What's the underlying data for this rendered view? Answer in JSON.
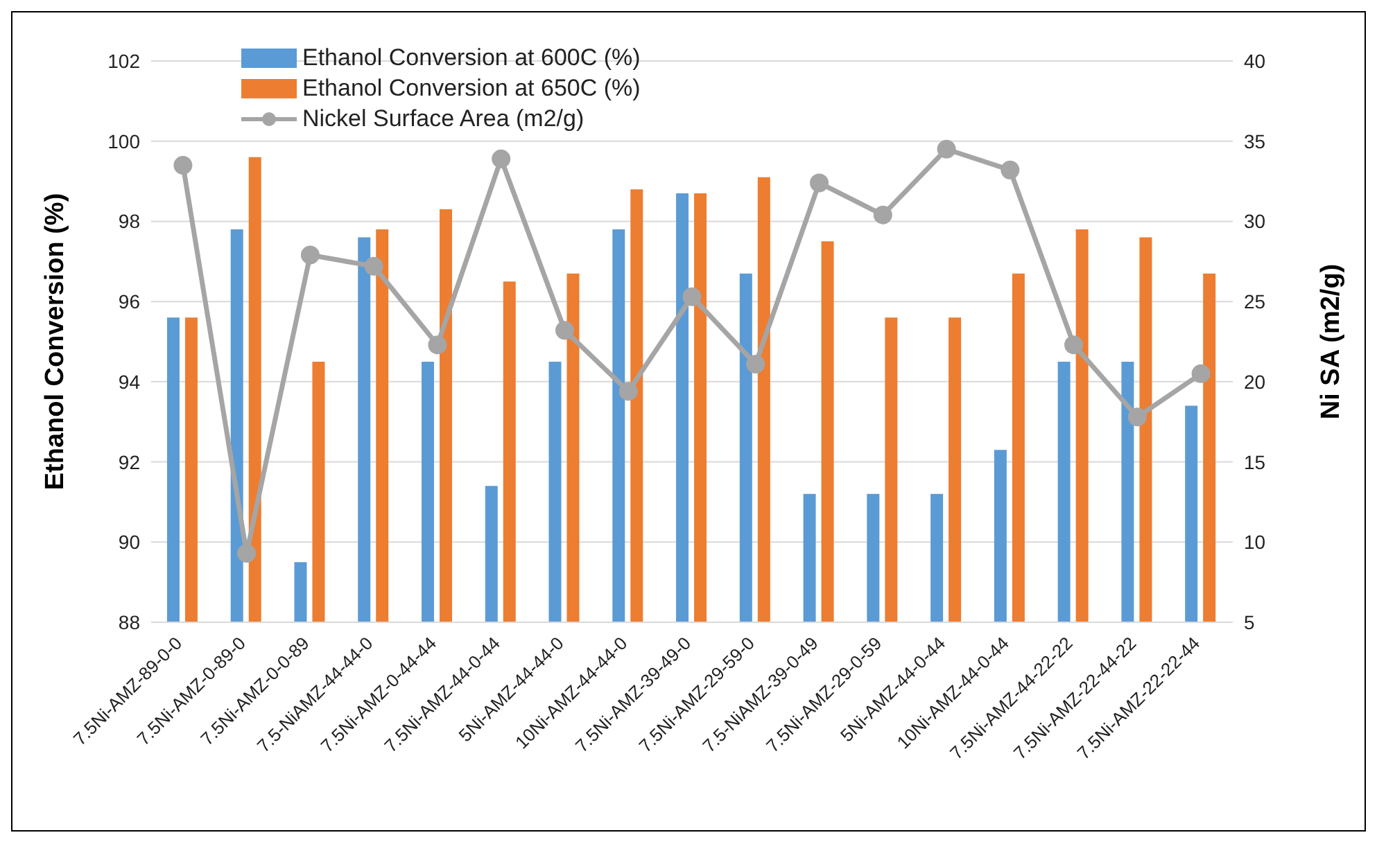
{
  "chart_data": {
    "type": "bar",
    "ylabel": "Ethanol Conversion (%)",
    "y2label": "Ni SA (m2/g)",
    "categories": [
      "7.5Ni-AMZ-89-0-0",
      "7.5Ni-AMZ-0-89-0",
      "7.5Ni-AMZ-0-0-89",
      "7.5-NiAMZ-44-44-0",
      "7.5Ni-AMZ-0-44-44",
      "7.5Ni-AMZ-44-0-44",
      "5Ni-AMZ-44-44-0",
      "10Ni-AMZ-44-44-0",
      "7.5Ni-AMZ-39-49-0",
      "7.5Ni-AMZ-29-59-0",
      "7.5-NiAMZ-39-0-49",
      "7.5Ni-AMZ-29-0-59",
      "5Ni-AMZ-44-0-44",
      "10Ni-AMZ-44-0-44",
      "7.5Ni-AMZ-44-22-22",
      "7.5Ni-AMZ-22-44-22",
      "7.5Ni-AMZ-22-22-44"
    ],
    "series": [
      {
        "name": "Ethanol Conversion at 600C (%)",
        "color": "#5b9bd5",
        "values": [
          95.6,
          97.8,
          89.5,
          97.6,
          94.5,
          91.4,
          94.5,
          97.8,
          98.7,
          96.7,
          91.2,
          91.2,
          91.2,
          92.3,
          94.5,
          94.5,
          93.4
        ]
      },
      {
        "name": "Ethanol Conversion at 650C (%)",
        "color": "#ed7d31",
        "values": [
          95.6,
          99.6,
          94.5,
          97.8,
          98.3,
          96.5,
          96.7,
          98.8,
          98.7,
          99.1,
          97.5,
          95.6,
          95.6,
          96.7,
          97.8,
          97.6,
          96.7
        ]
      },
      {
        "name": "Nickel Surface Area (m2/g)",
        "type": "line",
        "axis": "y2",
        "color": "#a5a5a5",
        "values": [
          33.5,
          9.3,
          27.9,
          27.2,
          22.3,
          33.9,
          23.2,
          19.4,
          25.3,
          21.1,
          32.4,
          30.4,
          34.5,
          33.2,
          22.3,
          17.8,
          20.5
        ]
      }
    ],
    "ylim": [
      88,
      102
    ],
    "yticks": [
      88,
      90,
      92,
      94,
      96,
      98,
      100,
      102
    ],
    "y2lim": [
      5,
      40
    ],
    "y2ticks": [
      5,
      10,
      15,
      20,
      25,
      30,
      35,
      40
    ],
    "grid": "y",
    "legend": "top left",
    "marker": "circle"
  }
}
